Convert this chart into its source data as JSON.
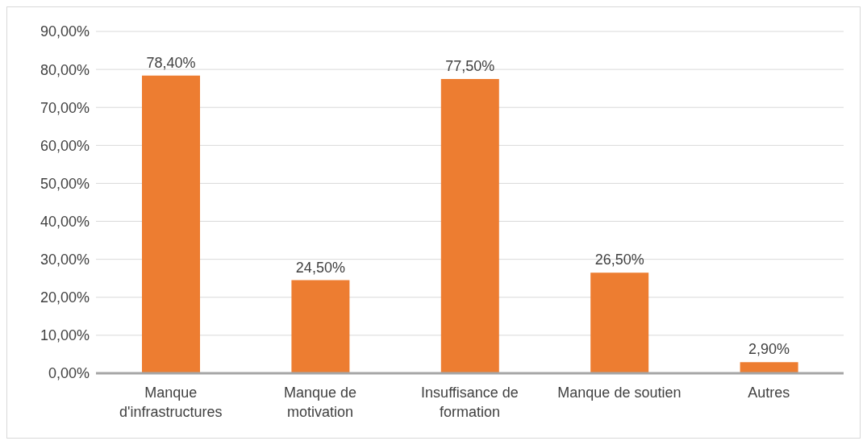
{
  "chart_data": {
    "type": "bar",
    "categories": [
      "Manque d'infrastructures",
      "Manque de motivation",
      "Insuffisance de formation",
      "Manque de soutien",
      "Autres"
    ],
    "values": [
      78.4,
      24.5,
      77.5,
      26.5,
      2.9
    ],
    "color": "#ed7d31",
    "value_labels": [
      "78,40%",
      "24,50%",
      "77,50%",
      "26,50%",
      "2,90%"
    ],
    "ylim": [
      0,
      90
    ],
    "yticks": [
      {
        "value": 0,
        "label": "0,00%"
      },
      {
        "value": 10,
        "label": "10,00%"
      },
      {
        "value": 20,
        "label": "20,00%"
      },
      {
        "value": 30,
        "label": "30,00%"
      },
      {
        "value": 40,
        "label": "40,00%"
      },
      {
        "value": 50,
        "label": "50,00%"
      },
      {
        "value": 60,
        "label": "60,00%"
      },
      {
        "value": 70,
        "label": "70,00%"
      },
      {
        "value": 80,
        "label": "80,00%"
      },
      {
        "value": 90,
        "label": "90,00%"
      }
    ],
    "grid": "y",
    "legend": false
  }
}
